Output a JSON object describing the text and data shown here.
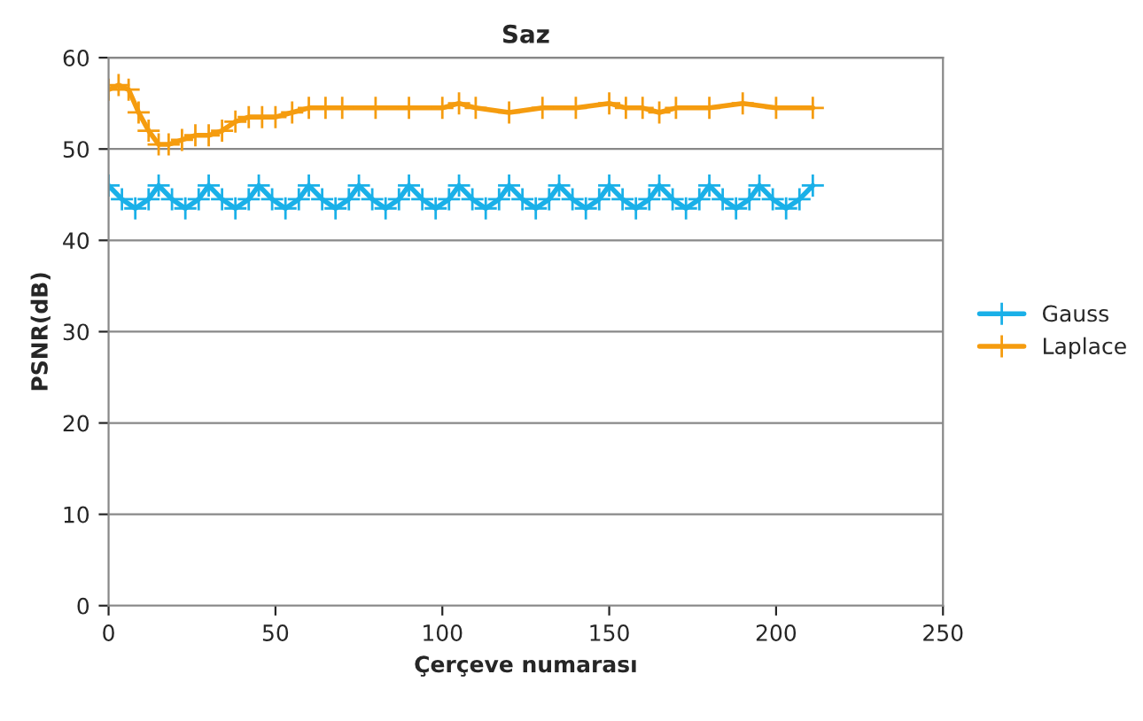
{
  "chart_data": {
    "type": "line",
    "title": "Saz",
    "xlabel": "Çerçeve numarası",
    "ylabel": "PSNR(dB)",
    "xlim": [
      0,
      250
    ],
    "xticks": [
      0,
      50,
      100,
      150,
      200,
      250
    ],
    "ylim": [
      0,
      60
    ],
    "yticks": [
      0,
      10,
      20,
      30,
      40,
      50,
      60
    ],
    "grid": "y",
    "legend": "right",
    "marker": "cross",
    "line_style": "solid",
    "series": [
      {
        "name": "Gauss",
        "color": "#1ab0e8",
        "x": [
          0,
          4,
          8,
          12,
          15,
          19,
          23,
          27,
          30,
          34,
          38,
          42,
          45,
          49,
          53,
          57,
          60,
          64,
          68,
          72,
          75,
          79,
          83,
          87,
          90,
          94,
          98,
          102,
          105,
          109,
          113,
          117,
          120,
          124,
          128,
          132,
          135,
          139,
          143,
          147,
          150,
          154,
          158,
          162,
          165,
          169,
          173,
          177,
          180,
          184,
          188,
          192,
          195,
          199,
          203,
          207,
          211
        ],
        "values": [
          46,
          44.5,
          43.5,
          44.5,
          46,
          44.5,
          43.5,
          44.5,
          46,
          44.5,
          43.5,
          44.5,
          46,
          44.5,
          43.5,
          44.5,
          46,
          44.5,
          43.5,
          44.5,
          46,
          44.5,
          43.5,
          44.5,
          46,
          44.5,
          43.5,
          44.5,
          46,
          44.5,
          43.5,
          44.5,
          46,
          44.5,
          43.5,
          44.5,
          46,
          44.5,
          43.5,
          44.5,
          46,
          44.5,
          43.5,
          44.5,
          46,
          44.5,
          43.5,
          44.5,
          46,
          44.5,
          43.5,
          44.5,
          46,
          44.5,
          43.5,
          44.5,
          46
        ]
      },
      {
        "name": "Laplace",
        "color": "#f59c0f",
        "x": [
          0,
          3,
          6,
          9,
          12,
          15,
          18,
          22,
          26,
          30,
          34,
          38,
          42,
          46,
          50,
          55,
          60,
          65,
          70,
          80,
          90,
          100,
          105,
          110,
          120,
          130,
          140,
          150,
          155,
          160,
          165,
          170,
          180,
          190,
          200,
          211
        ],
        "values": [
          56.5,
          57,
          56.5,
          54,
          52,
          50.5,
          50.5,
          51,
          51.5,
          51.5,
          52,
          53,
          53.5,
          53.5,
          53.5,
          54,
          54.5,
          54.5,
          54.5,
          54.5,
          54.5,
          54.5,
          55,
          54.5,
          54,
          54.5,
          54.5,
          55,
          54.5,
          54.5,
          54,
          54.5,
          54.5,
          55,
          54.5,
          54.5
        ]
      }
    ]
  }
}
